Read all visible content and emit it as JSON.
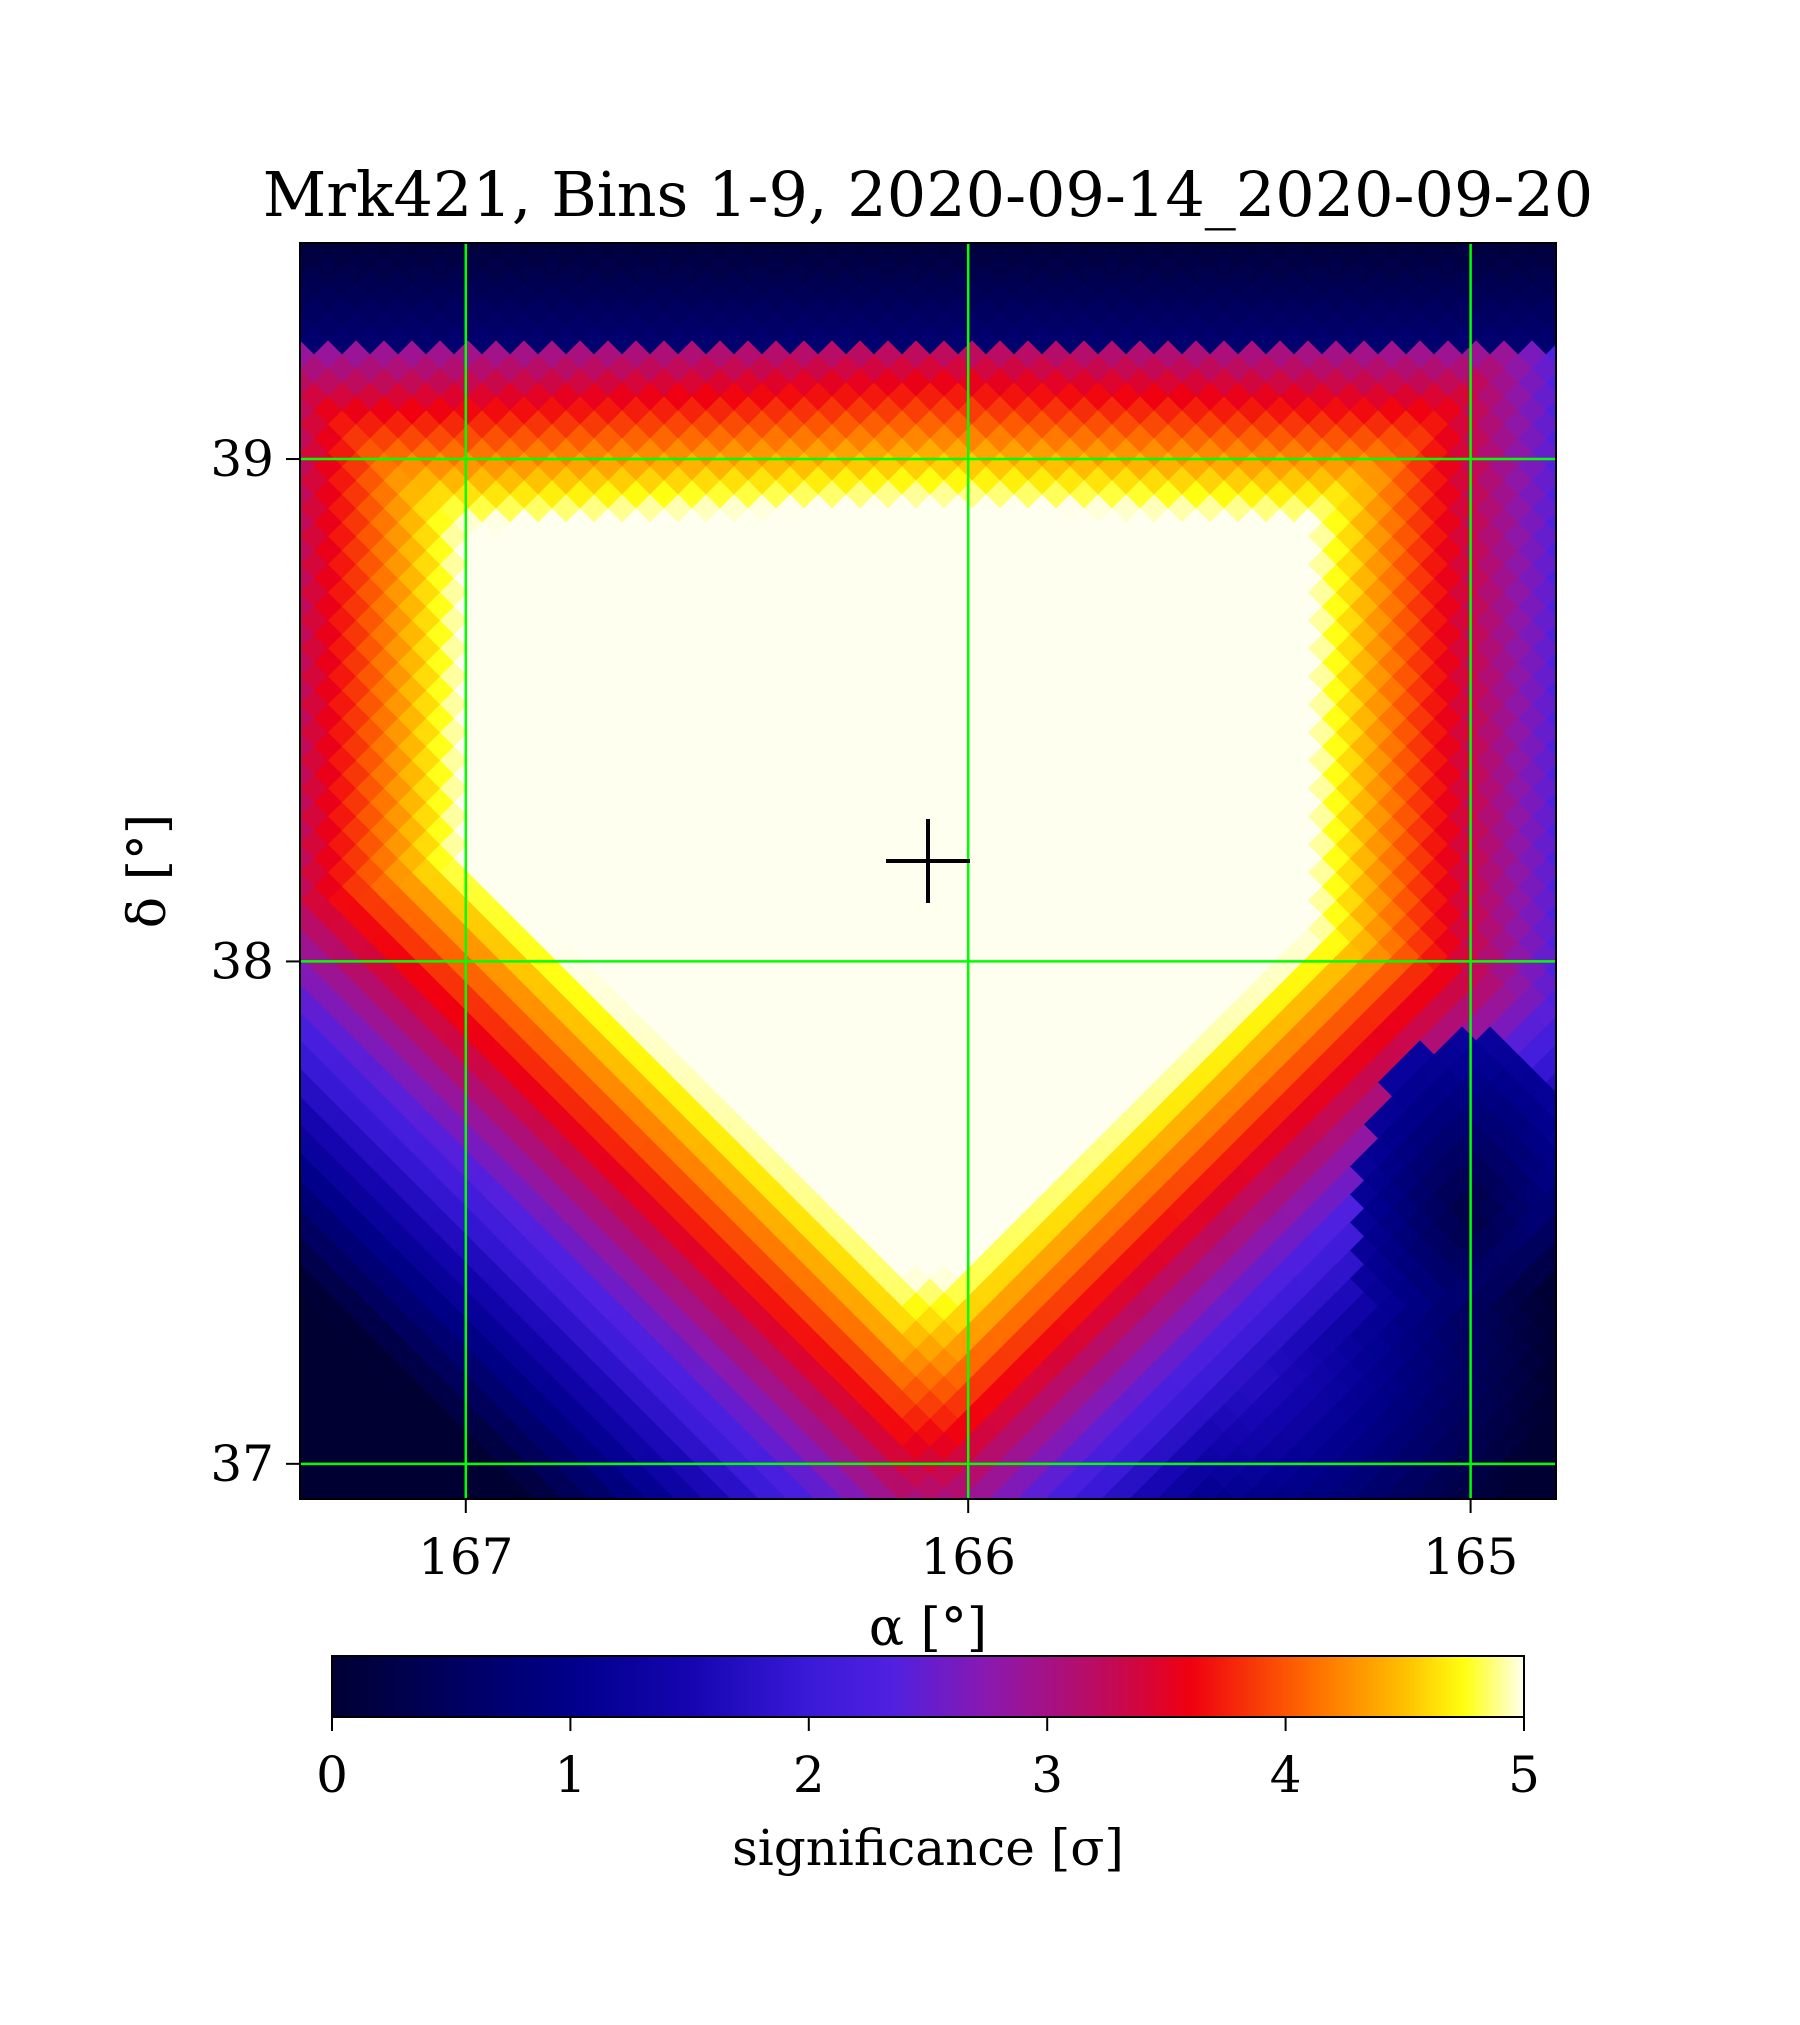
{
  "chart_data": {
    "type": "heatmap",
    "title": "Mrk421, Bins 1-9, 2020-09-14_2020-09-20",
    "xlabel": "α [°]",
    "ylabel": "δ [°]",
    "x_ticks": [
      167,
      166,
      165
    ],
    "y_ticks": [
      37,
      38,
      39
    ],
    "xlim": [
      167.33,
      164.83
    ],
    "ylim": [
      36.93,
      39.43
    ],
    "x_inverted": true,
    "grid": true,
    "grid_color": "#00ff00",
    "colormap": "gnuplot2-like",
    "colorbar": {
      "label": "significance [σ]",
      "ticks": [
        0,
        1,
        2,
        3,
        4,
        5
      ],
      "range": [
        0,
        5
      ],
      "orientation": "horizontal",
      "position": "bottom"
    },
    "marker": {
      "type": "plus",
      "ra": 166.08,
      "dec": 38.2,
      "color": "#000000"
    },
    "model": {
      "peak": {
        "ra": 166.08,
        "dec": 38.2
      },
      "saturated_top_dec": 38.88,
      "saturated_left_ra": 166.97,
      "saturated_right_ra": 165.35,
      "saturated_bottom_dec": 37.42,
      "note_secondary_blob": {
        "ra": 165.55,
        "dec": 37.25,
        "level": 2.2
      },
      "low_region": {
        "ra": 165.0,
        "dec": 37.5,
        "level": 0.2
      },
      "top_region_level": 0.1
    }
  }
}
